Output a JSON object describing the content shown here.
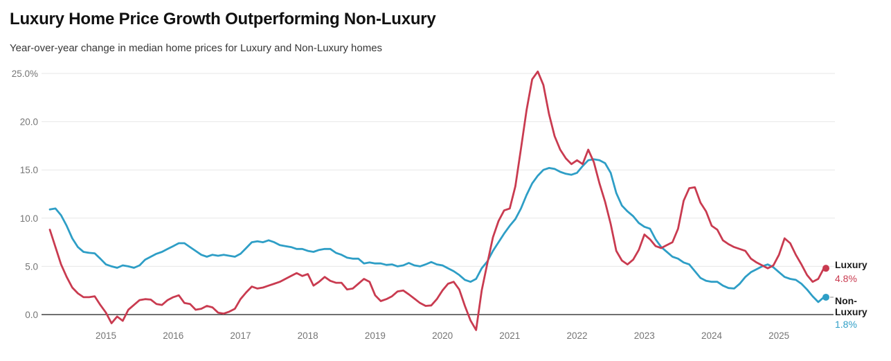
{
  "header": {
    "title": "Luxury Home Price Growth Outperforming Non-Luxury",
    "subtitle": "Year-over-year change in median home prices for Luxury and Non-Luxury homes"
  },
  "chart_data": {
    "type": "line",
    "title": "Luxury Home Price Growth Outperforming Non-Luxury",
    "subtitle": "Year-over-year change in median home prices for Luxury and Non-Luxury homes",
    "frequency": "monthly",
    "x_start": "2014-03",
    "x_end": "2025-09",
    "ylim": [
      -2.5,
      25.5
    ],
    "grid": "horizontal-only",
    "legend_position": "line-end-right",
    "colors": {
      "luxury": "#c93b50",
      "non_luxury": "#2e9ec6",
      "axis_text": "#757575",
      "gridline": "#e7e7e7",
      "zero_line": "#1a1a1a"
    },
    "y_axis": {
      "tick_values": [
        25,
        20,
        15,
        10,
        5,
        0
      ],
      "tick_labels": [
        "25.0%",
        "20.0",
        "15.0",
        "10.0",
        "5.0",
        "0.0"
      ]
    },
    "x_axis": {
      "tick_labels": [
        "2015",
        "2016",
        "2017",
        "2018",
        "2019",
        "2020",
        "2021",
        "2022",
        "2023",
        "2024",
        "2025"
      ],
      "first_tick_month_index": 10,
      "months_per_tick": 12
    },
    "series": [
      {
        "name": "Non-Luxury",
        "color": "#2e9ec6",
        "end_label": "Non-Luxury",
        "end_value_label": "1.8%",
        "values": [
          10.9,
          11.0,
          10.3,
          9.2,
          7.9,
          7.0,
          6.5,
          6.4,
          6.35,
          5.8,
          5.2,
          5.0,
          4.85,
          5.1,
          5.0,
          4.85,
          5.1,
          5.7,
          6.0,
          6.3,
          6.5,
          6.8,
          7.1,
          7.4,
          7.4,
          7.0,
          6.6,
          6.2,
          6.0,
          6.2,
          6.1,
          6.2,
          6.1,
          6.0,
          6.3,
          6.9,
          7.5,
          7.6,
          7.5,
          7.7,
          7.5,
          7.2,
          7.1,
          7.0,
          6.8,
          6.8,
          6.6,
          6.5,
          6.7,
          6.8,
          6.8,
          6.4,
          6.2,
          5.9,
          5.8,
          5.8,
          5.3,
          5.4,
          5.3,
          5.3,
          5.15,
          5.2,
          5.0,
          5.1,
          5.35,
          5.1,
          5.0,
          5.2,
          5.45,
          5.2,
          5.1,
          4.8,
          4.5,
          4.1,
          3.6,
          3.4,
          3.7,
          4.8,
          5.5,
          6.6,
          7.5,
          8.4,
          9.2,
          9.9,
          11.0,
          12.4,
          13.6,
          14.4,
          15.0,
          15.2,
          15.1,
          14.8,
          14.6,
          14.5,
          14.7,
          15.4,
          16.0,
          16.1,
          16.0,
          15.7,
          14.7,
          12.6,
          11.3,
          10.7,
          10.2,
          9.5,
          9.1,
          8.9,
          7.8,
          7.0,
          6.5,
          6.0,
          5.8,
          5.4,
          5.2,
          4.5,
          3.8,
          3.5,
          3.4,
          3.4,
          3.0,
          2.75,
          2.7,
          3.2,
          3.9,
          4.4,
          4.7,
          5.0,
          5.2,
          4.9,
          4.4,
          3.9,
          3.7,
          3.6,
          3.2,
          2.6,
          1.9,
          1.3,
          1.8
        ]
      },
      {
        "name": "Luxury",
        "color": "#c93b50",
        "end_label": "Luxury",
        "end_value_label": "4.8%",
        "values": [
          8.8,
          7.0,
          5.2,
          3.9,
          2.8,
          2.2,
          1.8,
          1.8,
          1.9,
          1.0,
          0.2,
          -0.9,
          -0.2,
          -0.65,
          0.5,
          1.0,
          1.5,
          1.6,
          1.55,
          1.1,
          1.0,
          1.5,
          1.8,
          2.0,
          1.2,
          1.1,
          0.5,
          0.6,
          0.9,
          0.75,
          0.2,
          0.1,
          0.3,
          0.6,
          1.6,
          2.3,
          2.9,
          2.7,
          2.8,
          3.0,
          3.2,
          3.4,
          3.7,
          4.0,
          4.3,
          4.0,
          4.2,
          3.0,
          3.4,
          3.9,
          3.5,
          3.3,
          3.3,
          2.6,
          2.7,
          3.2,
          3.7,
          3.4,
          2.0,
          1.4,
          1.6,
          1.9,
          2.4,
          2.5,
          2.1,
          1.65,
          1.2,
          0.9,
          0.95,
          1.6,
          2.5,
          3.2,
          3.4,
          2.6,
          0.9,
          -0.6,
          -1.6,
          2.5,
          5.3,
          8.0,
          9.7,
          10.8,
          11.0,
          13.3,
          17.2,
          21.2,
          24.4,
          25.2,
          23.8,
          20.8,
          18.5,
          17.1,
          16.2,
          15.6,
          16.0,
          15.6,
          17.1,
          15.8,
          13.6,
          11.7,
          9.4,
          6.6,
          5.6,
          5.2,
          5.7,
          6.7,
          8.3,
          7.8,
          7.1,
          6.9,
          7.2,
          7.5,
          8.9,
          11.8,
          13.1,
          13.2,
          11.6,
          10.7,
          9.2,
          8.8,
          7.7,
          7.3,
          7.0,
          6.8,
          6.6,
          5.8,
          5.4,
          5.1,
          4.8,
          5.1,
          6.2,
          7.9,
          7.4,
          6.2,
          5.2,
          4.1,
          3.4,
          3.7,
          4.8
        ]
      }
    ]
  }
}
